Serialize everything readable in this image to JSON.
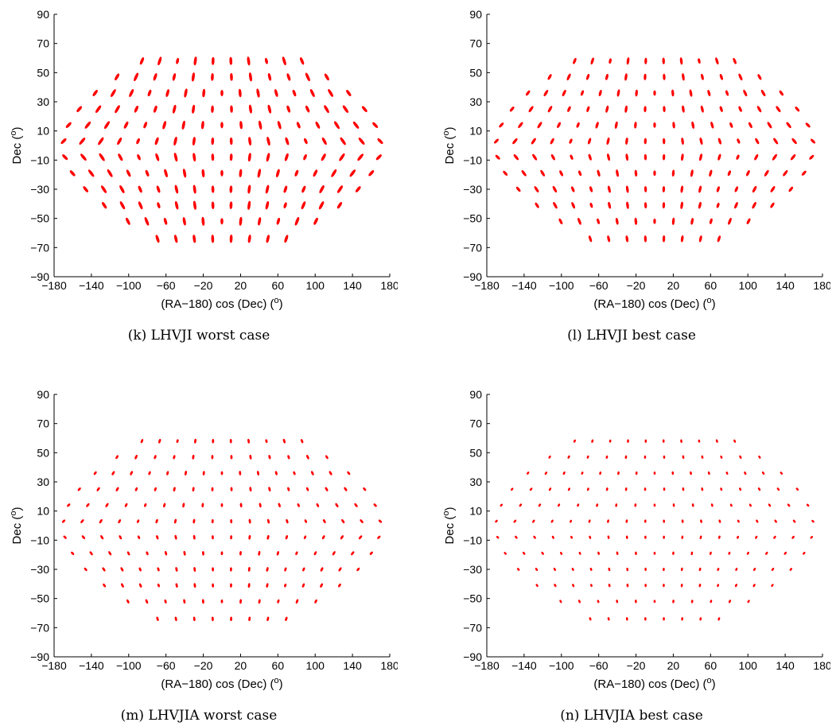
{
  "figure": {
    "dot_color": "#ff0000",
    "dec_label": "Dec",
    "x_label": "(RA−180) cos (Dec)",
    "degree_symbol": "o",
    "xlim": [
      -180,
      180
    ],
    "ylim": [
      -90,
      90
    ],
    "xticks": [
      "−180",
      "−140",
      "−100",
      "−60",
      "−20",
      "20",
      "60",
      "100",
      "140",
      "180"
    ],
    "yticks": [
      "90",
      "70",
      "50",
      "30",
      "10",
      "−10",
      "−30",
      "−50",
      "−70",
      "−90"
    ]
  },
  "panels": [
    {
      "caption": "(k) LHVJI worst case"
    },
    {
      "caption": "(l) LHVJI best case"
    },
    {
      "caption": "(m) LHVJIA worst case"
    },
    {
      "caption": "(n) LHVJIA best case"
    }
  ],
  "chart_data": [
    {
      "type": "scatter",
      "title": "",
      "xlabel": "(RA−180) cos (Dec) (o)",
      "ylabel": "Dec (o)",
      "xlim": [
        -180,
        180
      ],
      "ylim": [
        -90,
        90
      ],
      "dec_rows": [
        58,
        47,
        36,
        25,
        14,
        3,
        -8,
        -19,
        -30,
        -41,
        -52,
        -64
      ],
      "error_scale": "large",
      "legend": "none"
    },
    {
      "type": "scatter",
      "title": "",
      "xlabel": "(RA−180) cos (Dec) (o)",
      "ylabel": "Dec (o)",
      "xlim": [
        -180,
        180
      ],
      "ylim": [
        -90,
        90
      ],
      "dec_rows": [
        58,
        47,
        36,
        25,
        14,
        3,
        -8,
        -19,
        -30,
        -41,
        -52,
        -64
      ],
      "error_scale": "medium",
      "legend": "none"
    },
    {
      "type": "scatter",
      "title": "",
      "xlabel": "(RA−180) cos (Dec) (o)",
      "ylabel": "Dec (o)",
      "xlim": [
        -180,
        180
      ],
      "ylim": [
        -90,
        90
      ],
      "dec_rows": [
        58,
        47,
        36,
        25,
        14,
        3,
        -8,
        -19,
        -30,
        -41,
        -52,
        -64
      ],
      "error_scale": "small",
      "legend": "none"
    },
    {
      "type": "scatter",
      "title": "",
      "xlabel": "(RA−180) cos (Dec) (o)",
      "ylabel": "Dec (o)",
      "xlim": [
        -180,
        180
      ],
      "ylim": [
        -90,
        90
      ],
      "dec_rows": [
        58,
        47,
        36,
        25,
        14,
        3,
        -8,
        -19,
        -30,
        -41,
        -52,
        -64
      ],
      "error_scale": "tiny",
      "legend": "none"
    }
  ]
}
